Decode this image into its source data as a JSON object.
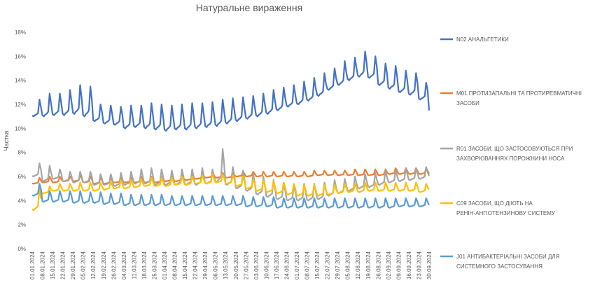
{
  "chart_data": {
    "type": "line",
    "title": "Натуральне вираження",
    "xlabel": "",
    "ylabel": "Частка",
    "ylim": [
      0,
      18
    ],
    "y_ticks": [
      "0%",
      "2%",
      "4%",
      "6%",
      "8%",
      "10%",
      "12%",
      "14%",
      "16%",
      "18%"
    ],
    "grid": false,
    "legend_position": "right",
    "categories": [
      "01.01.2024",
      "08.01.2024",
      "15.01.2024",
      "22.01.2024",
      "29.01.2024",
      "05.02.2024",
      "12.02.2024",
      "19.02.2024",
      "26.02.2024",
      "04.03.2024",
      "11.03.2024",
      "18.03.2024",
      "25.03.2024",
      "01.04.2024",
      "08.04.2024",
      "15.04.2024",
      "22.04.2024",
      "29.04.2024",
      "06.05.2024",
      "13.05.2024",
      "20.05.2024",
      "27.05.2024",
      "03.06.2024",
      "10.06.2024",
      "17.06.2024",
      "24.06.2024",
      "01.07.2024",
      "08.07.2024",
      "15.07.2024",
      "22.07.2024",
      "29.07.2024",
      "05.08.2024",
      "12.08.2024",
      "19.08.2024",
      "26.08.2024",
      "02.09.2024",
      "09.09.2024",
      "16.09.2024",
      "23.09.2024",
      "30.09.2024"
    ],
    "series": [
      {
        "name": "N02 АНАЛЬГЕТИКИ",
        "color": "#4472C4",
        "weekly_low": [
          11.0,
          11.0,
          11.1,
          11.1,
          11.2,
          11.0,
          10.6,
          10.4,
          10.3,
          10.0,
          10.1,
          10.0,
          9.9,
          9.8,
          9.9,
          9.9,
          10.0,
          10.1,
          10.2,
          10.4,
          10.6,
          10.8,
          11.0,
          11.2,
          11.5,
          11.8,
          12.0,
          12.3,
          12.7,
          13.2,
          13.6,
          14.0,
          14.3,
          14.2,
          13.6,
          13.3,
          13.0,
          12.8,
          12.4,
          11.4
        ],
        "weekly_peak": [
          12.4,
          12.9,
          12.9,
          13.2,
          13.6,
          13.5,
          12.0,
          11.9,
          11.8,
          11.9,
          11.9,
          12.1,
          12.0,
          11.9,
          12.0,
          12.1,
          12.1,
          12.2,
          12.4,
          12.5,
          12.6,
          12.7,
          12.9,
          13.2,
          13.4,
          13.6,
          13.9,
          14.2,
          14.6,
          15.0,
          15.6,
          15.9,
          16.4,
          16.0,
          15.4,
          15.2,
          14.8,
          14.6,
          13.8,
          13.4
        ]
      },
      {
        "name": "M01 ПРОТИЗАПАЛЬНІ ТА ПРОТИРЕВМАТИЧНІ ЗАСОБИ",
        "color": "#ED7D31",
        "weekly_low": [
          5.4,
          5.5,
          5.5,
          5.6,
          5.6,
          5.5,
          5.4,
          5.4,
          5.5,
          5.5,
          5.5,
          5.5,
          5.5,
          5.6,
          5.6,
          5.7,
          5.8,
          5.9,
          5.9,
          5.9,
          6.0,
          6.0,
          6.0,
          6.0,
          6.0,
          6.0,
          6.0,
          6.0,
          6.1,
          6.1,
          6.1,
          6.1,
          6.1,
          6.1,
          6.1,
          6.2,
          6.2,
          6.2,
          6.2,
          6.2
        ],
        "weekly_peak": [
          5.9,
          6.0,
          6.0,
          6.0,
          6.1,
          6.0,
          5.9,
          5.9,
          5.9,
          5.9,
          6.0,
          6.0,
          6.0,
          6.0,
          6.1,
          6.1,
          6.2,
          6.3,
          6.3,
          6.3,
          6.4,
          6.4,
          6.4,
          6.4,
          6.4,
          6.4,
          6.4,
          6.5,
          6.5,
          6.5,
          6.5,
          6.6,
          6.6,
          6.6,
          6.6,
          6.7,
          6.7,
          6.7,
          6.7,
          6.7
        ]
      },
      {
        "name": "R01 ЗАСОБИ, ЩО ЗАСТОСОВУЮТЬСЯ ПРИ ЗАХВОРЮВАННЯХ ПОРОЖНИНИ НОСА",
        "color": "#A5A5A5",
        "weekly_low": [
          6.0,
          5.6,
          5.8,
          5.6,
          5.5,
          5.5,
          5.3,
          5.3,
          5.2,
          5.3,
          5.4,
          5.4,
          5.3,
          5.3,
          5.3,
          5.3,
          5.3,
          5.4,
          5.5,
          5.3,
          5.0,
          4.8,
          4.5,
          4.3,
          4.1,
          4.0,
          4.0,
          4.0,
          4.1,
          4.4,
          4.6,
          4.8,
          5.0,
          5.1,
          5.3,
          5.5,
          5.6,
          5.7,
          5.8,
          6.0
        ],
        "weekly_peak": [
          7.1,
          6.9,
          6.6,
          6.4,
          6.4,
          6.4,
          6.2,
          6.2,
          6.3,
          6.4,
          6.6,
          6.7,
          6.6,
          6.5,
          6.6,
          6.6,
          6.7,
          6.6,
          8.3,
          6.8,
          6.5,
          6.2,
          6.0,
          5.7,
          5.5,
          5.3,
          5.4,
          5.4,
          5.5,
          5.7,
          5.8,
          6.0,
          6.2,
          6.3,
          6.5,
          6.5,
          6.7,
          6.7,
          6.8,
          7.0
        ]
      },
      {
        "name": "C09 ЗАСОБИ, ЩО ДІЮТЬ НА РЕНІН-АНГІОТЕНЗИНОВУ СИСТЕМУ",
        "color": "#FFC000",
        "weekly_low": [
          3.2,
          4.6,
          4.8,
          4.8,
          4.8,
          4.8,
          4.8,
          4.9,
          5.0,
          5.0,
          5.1,
          5.2,
          5.2,
          5.2,
          5.3,
          5.3,
          5.4,
          5.4,
          5.5,
          5.4,
          5.2,
          5.0,
          4.8,
          4.7,
          4.6,
          4.5,
          4.4,
          4.4,
          4.4,
          4.5,
          4.6,
          4.7,
          4.7,
          4.8,
          4.8,
          4.8,
          4.8,
          4.8,
          4.7,
          4.9
        ],
        "weekly_peak": [
          5.0,
          5.2,
          5.4,
          5.4,
          5.5,
          5.5,
          5.5,
          5.6,
          5.7,
          5.7,
          5.8,
          5.9,
          5.9,
          5.9,
          6.0,
          6.0,
          6.1,
          6.2,
          6.2,
          6.1,
          6.0,
          5.8,
          5.7,
          5.6,
          5.5,
          5.4,
          5.3,
          5.3,
          5.3,
          5.3,
          5.4,
          5.4,
          5.5,
          5.5,
          5.5,
          5.5,
          5.5,
          5.5,
          5.4,
          5.3
        ]
      },
      {
        "name": "J01 АНТИБАКТЕРІАЛЬНІ ЗАСОБИ ДЛЯ СИСТЕМНОГО ЗАСТОСУВАННЯ",
        "color": "#5B9BD5",
        "weekly_low": [
          4.4,
          3.9,
          3.9,
          3.9,
          3.8,
          3.8,
          3.8,
          3.7,
          3.7,
          3.6,
          3.6,
          3.6,
          3.6,
          3.6,
          3.6,
          3.6,
          3.6,
          3.6,
          3.6,
          3.6,
          3.6,
          3.5,
          3.5,
          3.5,
          3.4,
          3.4,
          3.4,
          3.4,
          3.4,
          3.4,
          3.4,
          3.4,
          3.4,
          3.4,
          3.4,
          3.4,
          3.5,
          3.5,
          3.5,
          3.6
        ],
        "weekly_peak": [
          5.4,
          4.8,
          4.8,
          4.8,
          4.8,
          4.7,
          4.7,
          4.6,
          4.6,
          4.5,
          4.5,
          4.5,
          4.5,
          4.4,
          4.4,
          4.4,
          4.4,
          4.4,
          4.4,
          4.4,
          4.4,
          4.3,
          4.3,
          4.3,
          4.2,
          4.2,
          4.2,
          4.2,
          4.2,
          4.2,
          4.2,
          4.2,
          4.2,
          4.2,
          4.2,
          4.2,
          4.2,
          4.2,
          4.2,
          4.2
        ]
      }
    ]
  }
}
